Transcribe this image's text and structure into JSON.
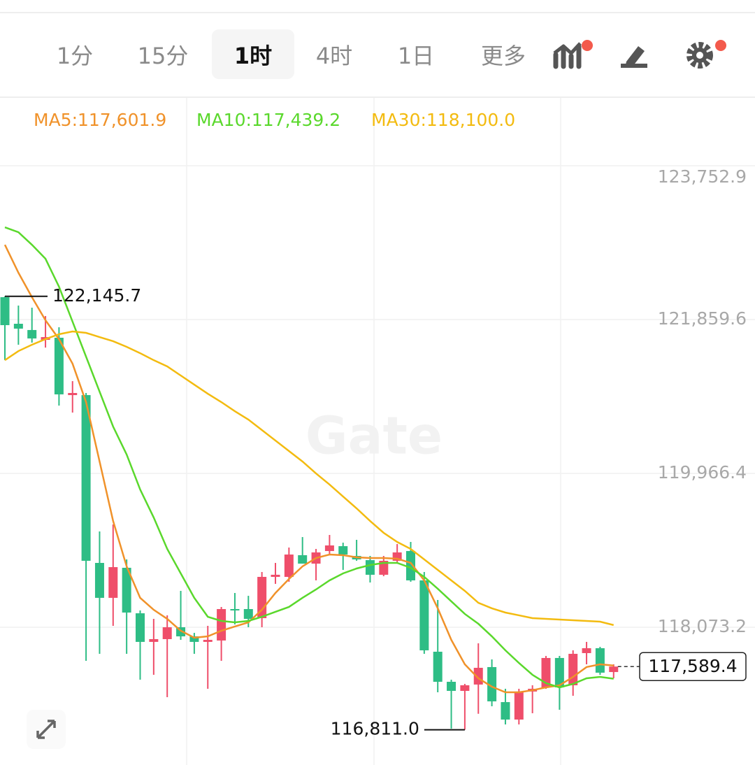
{
  "toolbar": {
    "tabs": [
      "1分",
      "15分",
      "1时",
      "4时",
      "1日",
      "更多"
    ],
    "selected": 2
  },
  "chart_data": {
    "type": "candlestick",
    "watermark": "Gate",
    "up_color": "#ef4e6a",
    "down_color": "#2ebd85",
    "open": [
      122135,
      121808,
      121731,
      121610,
      121636,
      120930,
      120930,
      118865,
      118435,
      118805,
      118245,
      117893,
      117927,
      118073,
      117961,
      117893,
      117910,
      118297,
      118297,
      118185,
      118693,
      118693,
      118960,
      118856,
      119011,
      119071,
      118951,
      118899,
      118719,
      118891,
      119011,
      118650,
      117772,
      117402,
      117290,
      117368,
      117583,
      117152,
      116937,
      117282,
      117333,
      117695,
      117359,
      117755,
      117815,
      117522
    ],
    "high": [
      122145.7,
      122032,
      122006,
      121903,
      121765,
      121102,
      120956,
      119252,
      119338,
      118908,
      118280,
      118176,
      118220,
      118521,
      118004,
      118090,
      118323,
      118495,
      118460,
      118753,
      118865,
      119054,
      119183,
      119037,
      119209,
      119114,
      119149,
      118951,
      118951,
      119097,
      119123,
      118753,
      118409,
      117428,
      117376,
      117875,
      117677,
      117316,
      117316,
      117359,
      117720,
      117720,
      117789,
      117893,
      117832,
      117617
    ],
    "low": [
      121360,
      121550,
      121576,
      121515,
      120801,
      120715,
      117660,
      117746,
      118090,
      117746,
      117428,
      117488,
      117213,
      117918,
      117746,
      117316,
      117660,
      118108,
      118073,
      118073,
      118607,
      118633,
      118856,
      118650,
      118968,
      118779,
      118891,
      118624,
      118701,
      118865,
      118633,
      117746,
      117273,
      116825,
      116811.0,
      117008,
      117101,
      116877,
      116877,
      117015,
      117316,
      117058,
      117230,
      117617,
      117488,
      117445
    ],
    "close": [
      121791,
      121748,
      121627,
      121644,
      120939,
      120956,
      118891,
      118435,
      118813,
      118254,
      117893,
      117927,
      118073,
      117961,
      117893,
      117918,
      118297,
      118280,
      118176,
      118693,
      118719,
      118968,
      118856,
      118994,
      119080,
      118968,
      118908,
      118719,
      118891,
      118994,
      118650,
      117789,
      117402,
      117290,
      117359,
      117574,
      117161,
      116937,
      117282,
      117316,
      117695,
      117333,
      117746,
      117815,
      117514,
      117589.4
    ],
    "series": [
      {
        "name": "MA5:117,601.9",
        "color": "#f0922a",
        "values": [
          122780,
          122436,
          122135,
          121851,
          121619,
          121317,
          120844,
          120113,
          119381,
          118822,
          118435,
          118288,
          118176,
          118030,
          117944,
          117961,
          118030,
          118082,
          118133,
          118288,
          118495,
          118667,
          118822,
          118925,
          118968,
          118960,
          118934,
          118925,
          118925,
          118917,
          118865,
          118650,
          118306,
          117918,
          117617,
          117445,
          117342,
          117273,
          117273,
          117298,
          117333,
          117359,
          117462,
          117583,
          117617,
          117601.9
        ]
      },
      {
        "name": "MA10:117,439.2",
        "color": "#5ad82c",
        "values": [
          122995,
          122935,
          122780,
          122608,
          122264,
          121834,
          121403,
          120973,
          120543,
          120199,
          119768,
          119424,
          119037,
          118736,
          118435,
          118202,
          118151,
          118133,
          118151,
          118202,
          118263,
          118323,
          118435,
          118538,
          118650,
          118736,
          118796,
          118839,
          118865,
          118865,
          118805,
          118693,
          118547,
          118392,
          118237,
          118116,
          117961,
          117789,
          117634,
          117488,
          117385,
          117333,
          117376,
          117445,
          117462,
          117439.2
        ]
      },
      {
        "name": "MA30:118,100.0",
        "color": "#f3bb10",
        "values": [
          121360,
          121472,
          121550,
          121619,
          121679,
          121713,
          121696,
          121644,
          121593,
          121524,
          121446,
          121360,
          121283,
          121171,
          121059,
          120947,
          120844,
          120732,
          120629,
          120500,
          120371,
          120242,
          120113,
          119966,
          119829,
          119682,
          119536,
          119381,
          119235,
          119123,
          119037,
          118908,
          118779,
          118650,
          118521,
          118374,
          118306,
          118254,
          118220,
          118185,
          118176,
          118168,
          118159,
          118151,
          118142,
          118100.0
        ]
      }
    ],
    "ylim": [
      116377.9,
      124587.6
    ],
    "yticks": [
      {
        "value": 123752.9,
        "label": "123,752.9"
      },
      {
        "value": 121859.6,
        "label": "121,859.6"
      },
      {
        "value": 119966.4,
        "label": "119,966.4"
      },
      {
        "value": 118073.2,
        "label": "118,073.2"
      }
    ],
    "grid": true,
    "annotations": [
      {
        "value": 122145.7,
        "label": "122,145.7",
        "side": "right"
      },
      {
        "value": 116811.0,
        "label": "116,811.0",
        "side": "left"
      }
    ],
    "last_price": {
      "value": 117589.4,
      "label": "117,589.4"
    }
  }
}
